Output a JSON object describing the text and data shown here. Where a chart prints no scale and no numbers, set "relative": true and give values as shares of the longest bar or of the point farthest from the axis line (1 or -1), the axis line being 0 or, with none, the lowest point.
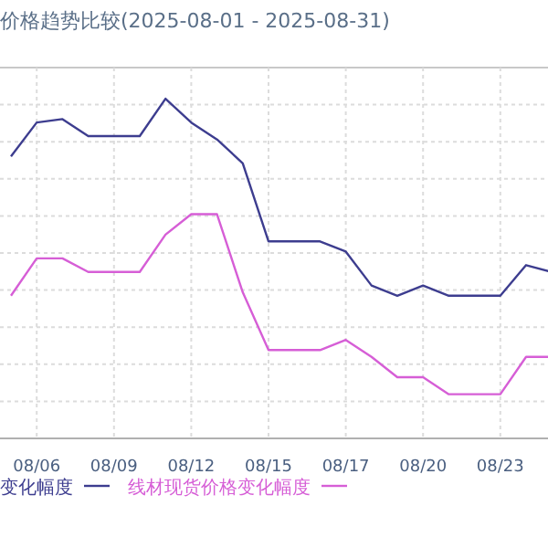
{
  "chart_data": {
    "type": "line",
    "title": "价格趋势比较(2025-08-01 - 2025-08-31)",
    "relative": true,
    "grid": true,
    "legend": "bottom",
    "marker": "none",
    "line_style": "solid",
    "categories": [
      null,
      "08/06",
      null,
      null,
      "08/09",
      null,
      null,
      "08/12",
      null,
      null,
      "08/15",
      null,
      null,
      "08/17",
      null,
      null,
      "08/20",
      null,
      null,
      "08/23",
      null,
      null
    ],
    "series": [
      {
        "name": "变化幅度",
        "color": "#3d3d8f",
        "values": [
          0.83,
          0.93,
          0.94,
          0.89,
          0.89,
          0.89,
          1,
          0.93,
          0.88,
          0.81,
          0.58,
          0.58,
          0.58,
          0.55,
          0.45,
          0.42,
          0.45,
          0.42,
          0.42,
          0.42,
          0.51,
          0.49
        ]
      },
      {
        "name": "线材现货价格变化幅度",
        "color": "#d65ed6",
        "values": [
          0.42,
          0.53,
          0.53,
          0.49,
          0.49,
          0.49,
          0.6,
          0.66,
          0.66,
          0.43,
          0.26,
          0.26,
          0.26,
          0.29,
          0.24,
          0.18,
          0.18,
          0.13,
          0.13,
          0.13,
          0.24,
          0.24
        ]
      }
    ]
  }
}
